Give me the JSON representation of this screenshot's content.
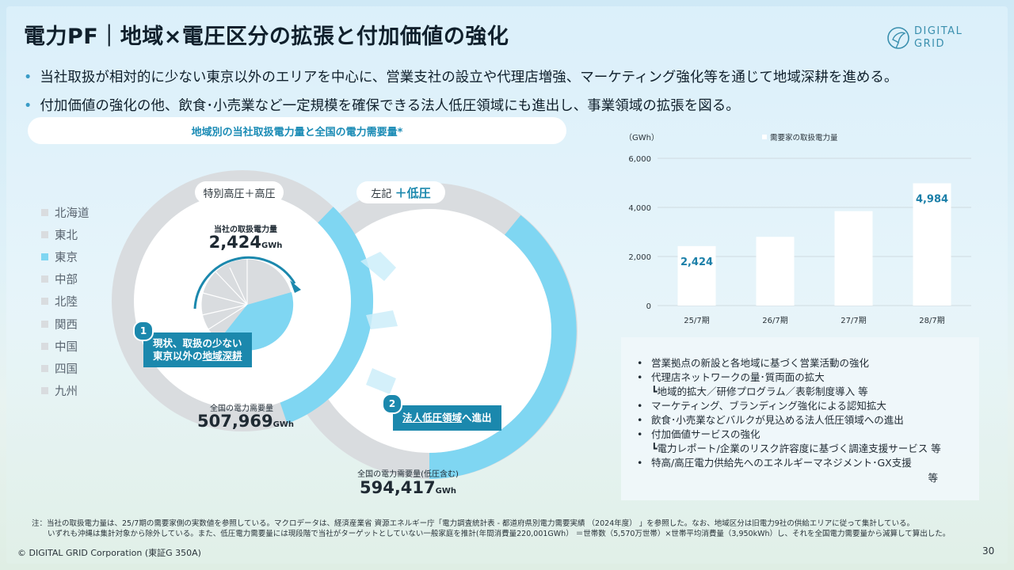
{
  "title": "電力PF｜地域×電圧区分の拡張と付加価値の強化",
  "logo": {
    "text": "DIGITAL\nGRID",
    "icon": "bird-leaf-icon",
    "color": "#3a8fae"
  },
  "bullets": [
    "当社取扱が相対的に少ない東京以外のエリアを中心に、営業支社の設立や代理店増強、マーケティング強化等を通じて地域深耕を進める。",
    "付加価値の強化の他、飲食･小売業など一定規模を確保できる法人低圧領域にも進出し、事業領域の拡張を図る。"
  ],
  "regional_section": {
    "header": "地域別の当社取扱電力量と全国の電力需要量*",
    "regions": [
      {
        "name": "北海道",
        "active": false
      },
      {
        "name": "東北",
        "active": false
      },
      {
        "name": "東京",
        "active": true
      },
      {
        "name": "中部",
        "active": false
      },
      {
        "name": "北陸",
        "active": false
      },
      {
        "name": "関西",
        "active": false
      },
      {
        "name": "中国",
        "active": false
      },
      {
        "name": "四国",
        "active": false
      },
      {
        "name": "九州",
        "active": false
      }
    ],
    "donut1": {
      "label": "特別高圧＋高圧",
      "inner_label": "当社の取扱電力量",
      "inner_value": "2,424",
      "inner_unit": "GWh",
      "total_label": "全国の電力需要量",
      "total_value": "507,969",
      "total_unit": "GWh"
    },
    "donut2": {
      "label_prefix": "左記",
      "label_highlight": "＋低圧",
      "total_label": "全国の電力需要量(低圧含む)",
      "total_value": "594,417",
      "total_unit": "GWh"
    },
    "callout1": {
      "num": "1",
      "line1": "現状、取扱の少ない",
      "line2_prefix": "東京以外の",
      "line2_highlight": "地域深耕"
    },
    "callout2": {
      "num": "2",
      "highlight": "法人低圧領域",
      "suffix": "へ進出"
    },
    "colors": {
      "accent": "#7fd6f2",
      "gray": "#d9dcdf",
      "badge": "#1b88ad"
    }
  },
  "chart_data": {
    "type": "bar",
    "categories": [
      "25/7期",
      "26/7期",
      "27/7期",
      "28/7期"
    ],
    "values": [
      2424,
      2800,
      3850,
      4984
    ],
    "data_labels": [
      "2,424",
      "",
      "",
      "4,984"
    ],
    "series": [
      {
        "name": "需要家の取扱電力量",
        "values": [
          2424,
          2800,
          3850,
          4984
        ]
      }
    ],
    "ylabel": "（GWh）",
    "ylim": [
      0,
      6000
    ],
    "yticks": [
      "0",
      "2,000",
      "4,000",
      "6,000"
    ],
    "grid": true,
    "legend": "top-center",
    "bar_color": "#ffffff",
    "label_color": "#1b7fa8"
  },
  "measures": [
    {
      "text": "営業拠点の新設と各地域に基づく営業活動の強化",
      "sub": false
    },
    {
      "text": "代理店ネットワークの量･質両面の拡大",
      "sub": false
    },
    {
      "text": "┗地域的拡大／研修プログラム／表彰制度導入 等",
      "sub": true
    },
    {
      "text": "マーケティング、ブランディング強化による認知拡大",
      "sub": false
    },
    {
      "text": "飲食･小売業などバルクが見込める法人低圧領域への進出",
      "sub": false
    },
    {
      "text": "付加価値サービスの強化",
      "sub": false
    },
    {
      "text": "┗電力レポート/企業のリスク許容度に基づく調達支援サービス 等",
      "sub": true
    },
    {
      "text": "特高/高圧電力供給先へのエネルギーマネジメント･GX支援",
      "sub": false
    }
  ],
  "measures_etc": "等",
  "note_lines": [
    "注：当社の取扱電力量は、25/7期の需要家側の実数値を参照している。マクロデータは、経済産業省 資源エネルギー庁「電力調査統計表 - 都道府県別電力需要実績 （2024年度） 」を参照した。なお、地域区分は旧電力9社の供給エリアに従って集計している。",
    "いずれも沖縄は集計対象から除外している。また、低圧電力需要量には現段階で当社がターゲットとしていない一般家庭を推計(年間消費量220,001GWh） ＝世帯数（5,570万世帯）×世帯平均消費量（3,950kWh）し、それを全国電力需要量から減算して算出した。"
  ],
  "footer": "© DIGITAL GRID Corporation (東証G 350A)",
  "page_number": "30"
}
